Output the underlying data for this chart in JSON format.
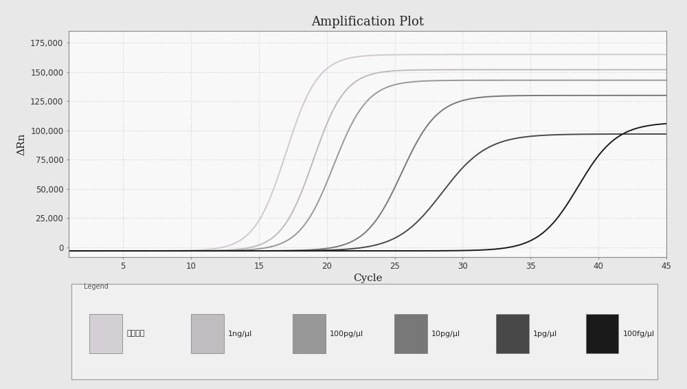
{
  "title": "Amplification Plot",
  "xlabel": "Cycle",
  "ylabel": "ΔRn",
  "xlim": [
    1,
    45
  ],
  "ylim": [
    -8000,
    185000
  ],
  "yticks": [
    0,
    25000,
    50000,
    75000,
    100000,
    125000,
    150000,
    175000
  ],
  "ytick_labels": [
    "0",
    "25,000",
    "50,000",
    "75,000",
    "100,000",
    "125,000",
    "150,000",
    "175,000"
  ],
  "xticks": [
    5,
    10,
    15,
    20,
    25,
    30,
    35,
    40,
    45
  ],
  "series": [
    {
      "label": "阴性对照",
      "color": "#d0c8d0",
      "plateau": 165000,
      "midpoint": 17.0,
      "steepness": 0.85,
      "baseline": -3000
    },
    {
      "label": "1ng/μl",
      "color": "#c0b8c0",
      "plateau": 152000,
      "midpoint": 19.0,
      "steepness": 0.85,
      "baseline": -3000
    },
    {
      "label": "100pg/μl",
      "color": "#989898",
      "plateau": 143000,
      "midpoint": 20.5,
      "steepness": 0.8,
      "baseline": -3000
    },
    {
      "label": "10pg/μl",
      "color": "#787878",
      "plateau": 130000,
      "midpoint": 25.5,
      "steepness": 0.75,
      "baseline": -3000
    },
    {
      "label": "1pg/μl",
      "color": "#484848",
      "plateau": 97000,
      "midpoint": 28.5,
      "steepness": 0.6,
      "baseline": -3000
    },
    {
      "label": "100fg/μl",
      "color": "#1a1a1a",
      "plateau": 107000,
      "midpoint": 38.5,
      "steepness": 0.7,
      "baseline": -3000
    }
  ],
  "fig_bg_color": "#e8e8e8",
  "plot_bg_color": "#f8f8f8",
  "grid_color": "#cccccc",
  "spine_color": "#888888",
  "legend_colors": [
    "#d4cfd4",
    "#c0bcc0",
    "#989898",
    "#787878",
    "#484848",
    "#1a1a1a"
  ]
}
